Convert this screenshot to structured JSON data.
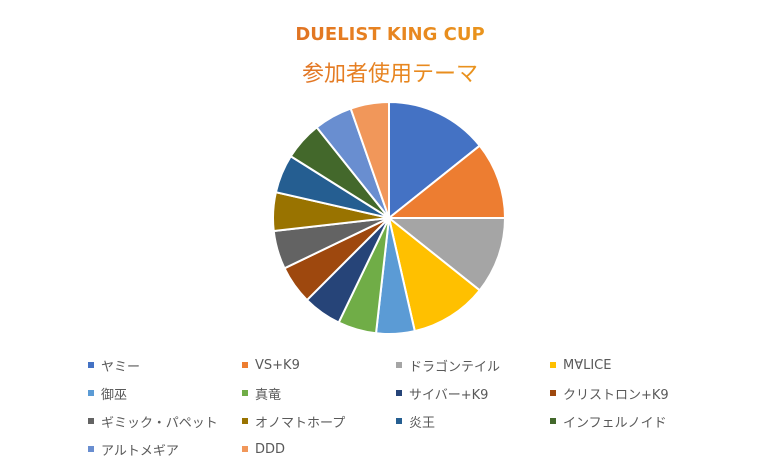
{
  "chart_data": {
    "type": "pie",
    "title_line1": "DUELIST KING CUP",
    "title_line2": "参加者使用テーマ",
    "legend_position": "bottom",
    "categories": [
      "ヤミー",
      "VS+K9",
      "ドラゴンテイル",
      "MⱯLICE",
      "御巫",
      "真竜",
      "サイバー+K9",
      "クリストロン+K9",
      "ギミック・パペット",
      "オノマトホープ",
      "炎王",
      "インフェルノイド",
      "アルトメギア",
      "DDD"
    ],
    "values": [
      4,
      3,
      3,
      3,
      1.5,
      1.5,
      1.5,
      1.5,
      1.5,
      1.5,
      1.5,
      1.5,
      1.5,
      1.5
    ],
    "colors": [
      "#4472C4",
      "#ED7D31",
      "#A5A5A5",
      "#FFC000",
      "#5B9BD5",
      "#70AD47",
      "#264478",
      "#9E480E",
      "#636363",
      "#997300",
      "#255E91",
      "#43682B",
      "#698ED0",
      "#F1975A"
    ]
  }
}
